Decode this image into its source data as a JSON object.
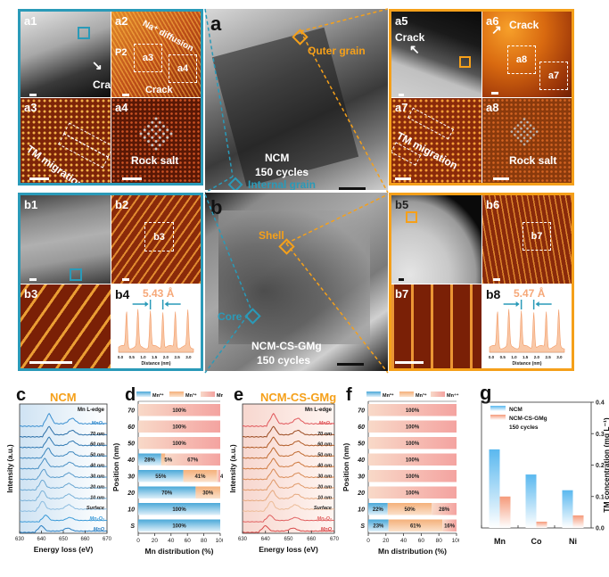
{
  "panels": {
    "a": {
      "label": "a",
      "sample": "NCM",
      "cycles": "150 cycles",
      "outer_grain": "Outer grain",
      "internal_grain": "Internal grain"
    },
    "b": {
      "label": "b",
      "sample": "NCM-CS-GMg",
      "cycles": "150 cycles",
      "shell": "Shell",
      "core": "Core"
    },
    "a1": {
      "label": "a1",
      "annotation": "Crack"
    },
    "a2": {
      "label": "a2",
      "annotation_top": "Na⁺ diffusion",
      "annotation_bottom": "Crack",
      "phase": "P2",
      "boxes": [
        "a3",
        "a4"
      ]
    },
    "a3": {
      "label": "a3",
      "annotation": "TM migration"
    },
    "a4": {
      "label": "a4",
      "annotation": "Rock salt"
    },
    "a5": {
      "label": "a5",
      "annotation": "Crack"
    },
    "a6": {
      "label": "a6",
      "annotation": "Crack",
      "boxes": [
        "a8",
        "a7"
      ]
    },
    "a7": {
      "label": "a7",
      "annotation": "TM migration"
    },
    "a8": {
      "label": "a8",
      "annotation": "Rock salt"
    },
    "b1": {
      "label": "b1"
    },
    "b2": {
      "label": "b2",
      "boxes": [
        "b3"
      ]
    },
    "b3": {
      "label": "b3"
    },
    "b4": {
      "label": "b4",
      "spacing": "5.43 Å",
      "xlabel": "Distance (nm)",
      "ticks": [
        "0.0",
        "0.5",
        "1.0",
        "1.5",
        "2.0",
        "2.5",
        "3.0"
      ]
    },
    "b5": {
      "label": "b5"
    },
    "b6": {
      "label": "b6",
      "boxes": [
        "b7"
      ]
    },
    "b7": {
      "label": "b7"
    },
    "b8": {
      "label": "b8",
      "spacing": "5.47 Å",
      "xlabel": "Distance (nm)",
      "ticks": [
        "0.0",
        "0.5",
        "1.0",
        "1.5",
        "2.0",
        "2.5",
        "3.0"
      ]
    }
  },
  "colors": {
    "ncm_frame": "#2a9ab8",
    "cs_frame": "#f5a01a",
    "mn2": "#4aa8d8",
    "mn3": "#f7b47a",
    "mn4": "#f4a3a0",
    "ncm_bar": "#5ab8ef",
    "cs_bar": "#f59a7a"
  },
  "chart_data": [
    {
      "id": "c",
      "type": "line",
      "panel_label": "c",
      "title": "NCM",
      "subtitle": "Mn L-edge",
      "xlabel": "Energy loss (eV)",
      "ylabel": "Intensity (a.u.)",
      "xlim": [
        630,
        670
      ],
      "xticks": [
        "630",
        "640",
        "650",
        "660",
        "670"
      ],
      "series_labels": [
        "MnO₂",
        "70 nm",
        "60 nm",
        "50 nm",
        "40 nm",
        "30 nm",
        "20 nm",
        "10 nm",
        "Surface",
        "Mn₂O₃",
        "MnO"
      ],
      "peaks_L3_eV": [
        643.5,
        643.5,
        643.5,
        643,
        641.5,
        641,
        640.5,
        640.5,
        640.5,
        642,
        640
      ],
      "peaks_L2_eV": [
        654,
        654,
        654,
        653.5,
        653,
        652.5,
        652.5,
        652.5,
        652.5,
        653,
        652
      ]
    },
    {
      "id": "d",
      "type": "bar",
      "stacked": true,
      "orientation": "horizontal",
      "panel_label": "d",
      "xlabel": "Mn distribution (%)",
      "ylabel": "Position (nm)",
      "xlim": [
        0,
        100
      ],
      "xticks": [
        "0",
        "20",
        "40",
        "60",
        "80",
        "100"
      ],
      "legend": [
        "Mn²⁺",
        "Mn³⁺",
        "Mn⁴⁺"
      ],
      "categories": [
        "70",
        "60",
        "50",
        "40",
        "30",
        "20",
        "10",
        "S"
      ],
      "series": [
        {
          "name": "Mn²⁺",
          "values": [
            0,
            0,
            0,
            28,
            55,
            70,
            100,
            100
          ]
        },
        {
          "name": "Mn³⁺",
          "values": [
            0,
            0,
            0,
            5,
            41,
            30,
            0,
            0
          ]
        },
        {
          "name": "Mn⁴⁺",
          "values": [
            100,
            100,
            100,
            67,
            4,
            0,
            0,
            0
          ]
        }
      ]
    },
    {
      "id": "e",
      "type": "line",
      "panel_label": "e",
      "title": "NCM-CS-GMg",
      "subtitle": "Mn L-edge",
      "xlabel": "Energy loss (eV)",
      "ylabel": "Intensity (a.u.)",
      "xlim": [
        630,
        670
      ],
      "xticks": [
        "630",
        "640",
        "650",
        "660",
        "670"
      ],
      "series_labels": [
        "MnO₂",
        "70 nm",
        "60 nm",
        "50 nm",
        "40 nm",
        "30 nm",
        "20 nm",
        "10 nm",
        "Surface",
        "Mn₂O₃",
        "MnO"
      ],
      "peaks_L3_eV": [
        643.5,
        643.5,
        643.5,
        643.5,
        643.5,
        643.5,
        643.5,
        643,
        642.5,
        642,
        640
      ],
      "peaks_L2_eV": [
        654,
        654,
        654,
        654,
        654,
        654,
        654,
        653.5,
        653,
        653,
        652
      ]
    },
    {
      "id": "f",
      "type": "bar",
      "stacked": true,
      "orientation": "horizontal",
      "panel_label": "f",
      "xlabel": "Mn distribution (%)",
      "ylabel": "Position (nm)",
      "xlim": [
        0,
        100
      ],
      "xticks": [
        "0",
        "20",
        "40",
        "60",
        "80",
        "100"
      ],
      "legend": [
        "Mn²⁺",
        "Mn³⁺",
        "Mn⁴⁺"
      ],
      "categories": [
        "70",
        "60",
        "50",
        "40",
        "30",
        "20",
        "10",
        "S"
      ],
      "series": [
        {
          "name": "Mn²⁺",
          "values": [
            0,
            0,
            0,
            0,
            0,
            0,
            22,
            23
          ]
        },
        {
          "name": "Mn³⁺",
          "values": [
            0,
            0,
            0,
            0,
            0,
            0,
            50,
            61
          ]
        },
        {
          "name": "Mn⁴⁺",
          "values": [
            100,
            100,
            100,
            100,
            100,
            100,
            28,
            16
          ]
        }
      ]
    },
    {
      "id": "g",
      "type": "bar",
      "panel_label": "g",
      "ylabel": "TM concentration (mg L⁻¹)",
      "ylim": [
        0,
        0.4
      ],
      "yticks": [
        "0.0",
        "0.1",
        "0.2",
        "0.3",
        "0.4"
      ],
      "categories": [
        "Mn",
        "Co",
        "Ni"
      ],
      "legend_note": "150 cycles",
      "series": [
        {
          "name": "NCM",
          "values": [
            0.25,
            0.17,
            0.12
          ]
        },
        {
          "name": "NCM-CS-GMg",
          "values": [
            0.1,
            0.02,
            0.04
          ]
        }
      ]
    }
  ]
}
